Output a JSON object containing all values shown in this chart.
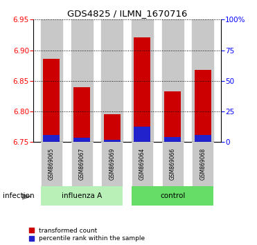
{
  "title": "GDS4825 / ILMN_1670716",
  "samples": [
    "GSM869065",
    "GSM869067",
    "GSM869069",
    "GSM869064",
    "GSM869066",
    "GSM869068"
  ],
  "group_label": "infection",
  "group_spans": [
    {
      "label": "influenza A",
      "start": 0,
      "end": 2,
      "color": "#b8f0b8"
    },
    {
      "label": "control",
      "start": 3,
      "end": 5,
      "color": "#66dd66"
    }
  ],
  "baseline": 6.75,
  "red_tops": [
    6.886,
    6.84,
    6.796,
    6.921,
    6.833,
    6.868
  ],
  "blue_bottoms": [
    6.75,
    6.75,
    6.75,
    6.75,
    6.75,
    6.75
  ],
  "blue_tops": [
    6.762,
    6.757,
    6.754,
    6.775,
    6.758,
    6.762
  ],
  "ylim_left": [
    6.75,
    6.95
  ],
  "yticks_left": [
    6.75,
    6.8,
    6.85,
    6.9,
    6.95
  ],
  "ylim_right": [
    0,
    100
  ],
  "yticks_right": [
    0,
    25,
    50,
    75,
    100
  ],
  "ytick_labels_right": [
    "0",
    "25",
    "50",
    "75",
    "100%"
  ],
  "red_color": "#cc0000",
  "blue_color": "#2222cc",
  "bar_bg_color": "#c8c8c8",
  "bar_width": 0.55,
  "legend_items": [
    "transformed count",
    "percentile rank within the sample"
  ],
  "legend_colors": [
    "#cc0000",
    "#2222cc"
  ]
}
